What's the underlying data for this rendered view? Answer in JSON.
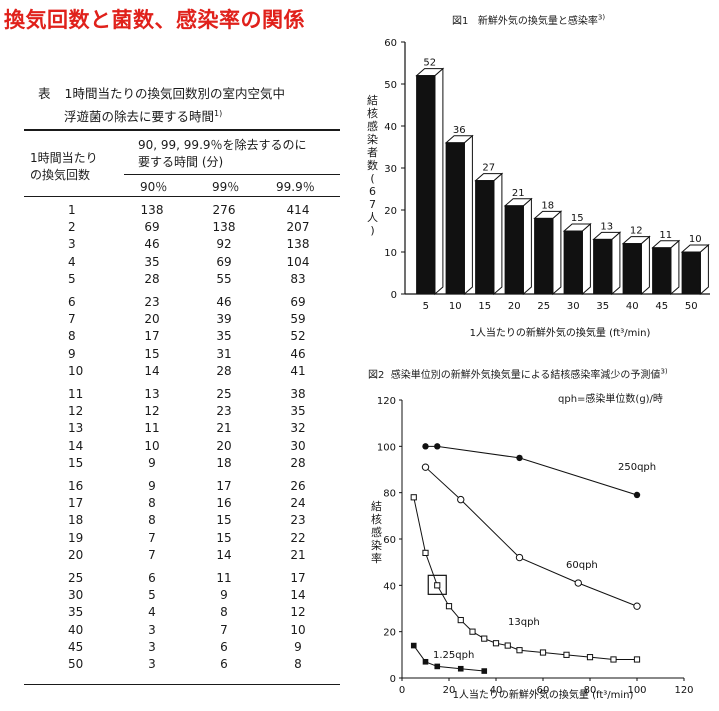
{
  "page_title": "換気回数と菌数、感染率の関係",
  "table": {
    "label": "表",
    "caption_line1": "1時間当たりの換気回数別の室内空気中",
    "caption_line2": "浮遊菌の除去に要する時間",
    "caption_ref": "1)",
    "col_header_left": [
      "1時間当たり",
      "の換気回数"
    ],
    "col_header_group": [
      "90, 99, 99.9％を除去するのに",
      "要する時間 (分)"
    ],
    "col_headers": [
      "90％",
      "99％",
      "99.9％"
    ],
    "row_groups": [
      [
        [
          "1",
          "138",
          "276",
          "414"
        ],
        [
          "2",
          "69",
          "138",
          "207"
        ],
        [
          "3",
          "46",
          "92",
          "138"
        ],
        [
          "4",
          "35",
          "69",
          "104"
        ],
        [
          "5",
          "28",
          "55",
          "83"
        ]
      ],
      [
        [
          "6",
          "23",
          "46",
          "69"
        ],
        [
          "7",
          "20",
          "39",
          "59"
        ],
        [
          "8",
          "17",
          "35",
          "52"
        ],
        [
          "9",
          "15",
          "31",
          "46"
        ],
        [
          "10",
          "14",
          "28",
          "41"
        ]
      ],
      [
        [
          "11",
          "13",
          "25",
          "38"
        ],
        [
          "12",
          "12",
          "23",
          "35"
        ],
        [
          "13",
          "11",
          "21",
          "32"
        ],
        [
          "14",
          "10",
          "20",
          "30"
        ],
        [
          "15",
          "9",
          "18",
          "28"
        ]
      ],
      [
        [
          "16",
          "9",
          "17",
          "26"
        ],
        [
          "17",
          "8",
          "16",
          "24"
        ],
        [
          "18",
          "8",
          "15",
          "23"
        ],
        [
          "19",
          "7",
          "15",
          "22"
        ],
        [
          "20",
          "7",
          "14",
          "21"
        ]
      ],
      [
        [
          "25",
          "6",
          "11",
          "17"
        ],
        [
          "30",
          "5",
          "9",
          "14"
        ],
        [
          "35",
          "4",
          "8",
          "12"
        ],
        [
          "40",
          "3",
          "7",
          "10"
        ],
        [
          "45",
          "3",
          "6",
          "9"
        ],
        [
          "50",
          "3",
          "6",
          "8"
        ]
      ]
    ]
  },
  "chart_data": [
    {
      "type": "bar",
      "figure_label": "図1",
      "title": "新鮮外気の換気量と感染率",
      "title_ref": "3)",
      "ylabel": "結核感染者数(67人)",
      "xlabel": "1人当たりの新鮮外気の換気量 (ft³/min)",
      "categories": [
        "5",
        "10",
        "15",
        "20",
        "25",
        "30",
        "35",
        "40",
        "45",
        "50"
      ],
      "values": [
        52,
        36,
        27,
        21,
        18,
        15,
        13,
        12,
        11,
        10
      ],
      "ylim": [
        0,
        60
      ],
      "yticks": [
        "0",
        "10",
        "20",
        "30",
        "40",
        "50",
        "60"
      ],
      "bar_color": "#111111"
    },
    {
      "type": "line",
      "figure_label": "図2",
      "title": "感染単位別の新鮮外気換気量による結核感染率減少の予測値",
      "title_ref": "3)",
      "subtitle": "qph=感染単位数(g)/時",
      "ylabel": "結核感染率",
      "xlabel": "1人当たりの新鮮外気の換気量 (ft³/min)",
      "xlim": [
        0,
        120
      ],
      "ylim": [
        0,
        120
      ],
      "xticks": [
        "0",
        "20",
        "40",
        "60",
        "80",
        "100",
        "120"
      ],
      "yticks": [
        "0",
        "20",
        "40",
        "60",
        "80",
        "100",
        "120"
      ],
      "series": [
        {
          "name": "250qph",
          "marker": "filled-circle",
          "x": [
            10,
            15,
            50,
            100
          ],
          "y": [
            100,
            100,
            95,
            79
          ]
        },
        {
          "name": "60qph",
          "marker": "open-circle",
          "x": [
            10,
            25,
            50,
            75,
            100
          ],
          "y": [
            91,
            77,
            52,
            41,
            31
          ]
        },
        {
          "name": "13qph",
          "marker": "open-square",
          "x": [
            5,
            10,
            15,
            20,
            25,
            30,
            35,
            40,
            45,
            50,
            60,
            70,
            80,
            90,
            100
          ],
          "y": [
            78,
            54,
            40,
            31,
            25,
            20,
            17,
            15,
            14,
            12,
            11,
            10,
            9,
            8,
            8
          ]
        },
        {
          "name": "1.25qph",
          "marker": "filled-square",
          "x": [
            5,
            10,
            15,
            25,
            35
          ],
          "y": [
            14,
            7,
            5,
            4,
            3
          ]
        }
      ],
      "highlight": {
        "x": 15,
        "y": 40
      }
    }
  ]
}
